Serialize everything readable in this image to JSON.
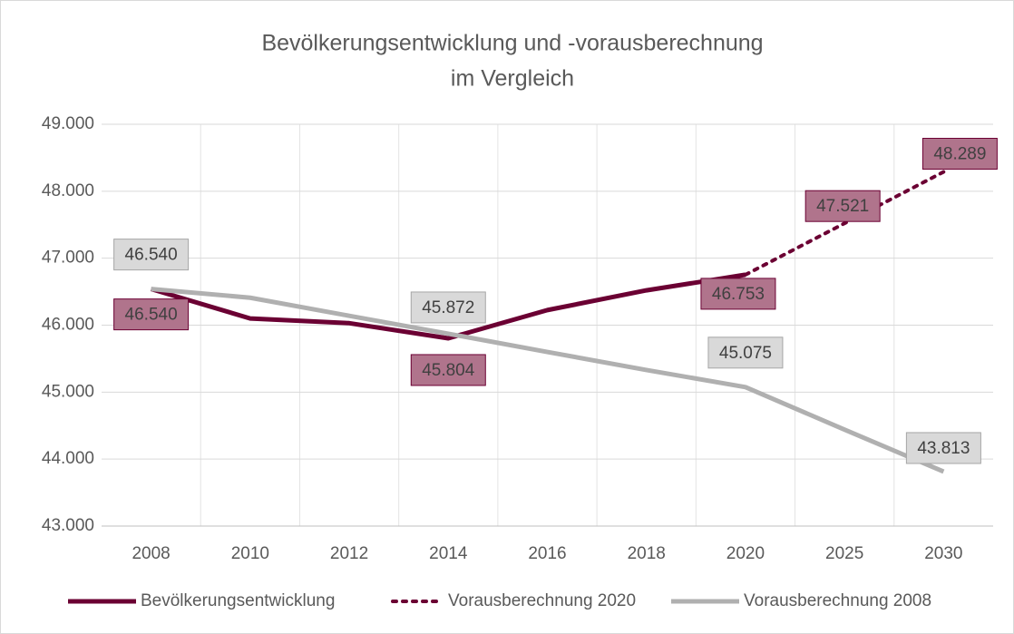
{
  "chart_data": {
    "type": "line",
    "title": [
      "Bevölkerungsentwicklung und -vorausberechnung",
      "im Vergleich"
    ],
    "categories": [
      "2008",
      "2010",
      "2012",
      "2014",
      "2016",
      "2018",
      "2020",
      "2025",
      "2030"
    ],
    "ylim": [
      43000,
      49000
    ],
    "yticks": [
      {
        "value": 43000,
        "label": "43.000"
      },
      {
        "value": 44000,
        "label": "44.000"
      },
      {
        "value": 45000,
        "label": "45.000"
      },
      {
        "value": 46000,
        "label": "46.000"
      },
      {
        "value": 47000,
        "label": "47.000"
      },
      {
        "value": 48000,
        "label": "48.000"
      },
      {
        "value": 49000,
        "label": "49.000"
      }
    ],
    "grid": true,
    "legend": "bottom",
    "series": [
      {
        "name": "Bevölkerungsentwicklung",
        "color": "#6b0033",
        "style": "solid",
        "values": [
          46540,
          46100,
          46030,
          45804,
          46225,
          46520,
          46753,
          null,
          null
        ],
        "value_labels": [
          "46.540",
          null,
          null,
          "45.804",
          null,
          null,
          "46.753",
          null,
          null
        ]
      },
      {
        "name": "Vorausberechnung 2020",
        "color": "#6b0033",
        "style": "dotted",
        "values": [
          null,
          null,
          null,
          null,
          null,
          null,
          46753,
          47521,
          48289
        ],
        "value_labels": [
          null,
          null,
          null,
          null,
          null,
          null,
          null,
          "47.521",
          "48.289"
        ]
      },
      {
        "name": "Vorausberechnung 2008",
        "color": "#b0b0b0",
        "style": "solid",
        "values": [
          46540,
          46410,
          46140,
          45872,
          45600,
          45330,
          45075,
          44440,
          43813
        ],
        "value_labels": [
          "46.540",
          null,
          null,
          "45.872",
          null,
          null,
          "45.075",
          null,
          "43.813"
        ]
      }
    ]
  }
}
